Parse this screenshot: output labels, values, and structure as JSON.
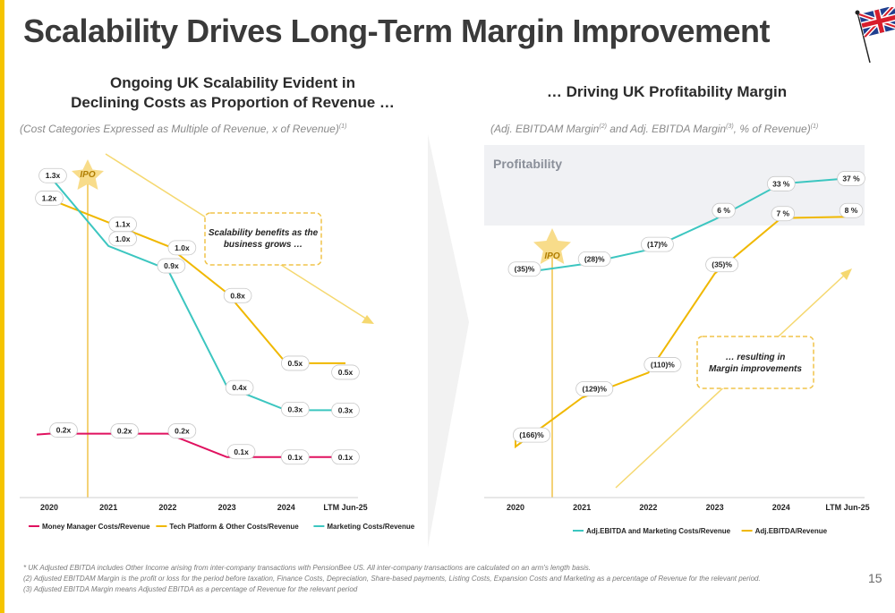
{
  "page": {
    "title": "Scalability Drives Long-Term Margin Improvement",
    "page_number": "15",
    "accent_color": "#f5c400",
    "flag_icon": "uk-flag-icon"
  },
  "left_panel": {
    "heading_line1": "Ongoing UK Scalability Evident in",
    "heading_line2": "Declining Costs as Proportion of Revenue …",
    "note": "(Cost Categories Expressed as Multiple of Revenue, x of Revenue)",
    "note_sup": "(1)",
    "callout": "Scalability benefits as the business grows …",
    "ipo_label": "IPO"
  },
  "right_panel": {
    "heading": "… Driving UK Profitability Margin",
    "note_a": "(Adj. EBITDAM Margin",
    "note_sup2": "(2)",
    "note_b": " and Adj. EBITDA Margin",
    "note_sup3": "(3)",
    "note_c": ", % of Revenue)",
    "note_sup1": "(1)",
    "band_label": "Profitability",
    "callout": "… resulting in Margin improvements",
    "ipo_label": "IPO"
  },
  "footnotes": [
    "* UK Adjusted EBITDA includes Other Income arising from inter-company transactions with PensionBee US. All inter-company transactions are calculated on an arm's length basis.",
    "(2) Adjusted EBITDAM Margin is the profit or loss for the period before taxation, Finance Costs, Depreciation, Share-based payments, Listing Costs, Expansion Costs and Marketing as a percentage of Revenue for the relevant period.",
    "(3) Adjusted EBITDA Margin means Adjusted EBITDA as a percentage of Revenue for the relevant period"
  ],
  "chart_data": [
    {
      "type": "line",
      "categories": [
        "2020",
        "2021",
        "2022",
        "2023",
        "2024",
        "LTM Jun-25"
      ],
      "ylim": [
        0,
        1.4
      ],
      "grid": false,
      "legend_position": "bottom",
      "series": [
        {
          "name": "Money Manager Costs/Revenue",
          "color": "#e0115f",
          "values": [
            0.2,
            0.2,
            0.2,
            0.1,
            0.1,
            0.1
          ],
          "labels": [
            "0.2x",
            "0.2x",
            "0.2x",
            "0.1x",
            "0.1x",
            "0.1x"
          ]
        },
        {
          "name": "Tech Platform & Other Costs/Revenue",
          "color": "#f0b800",
          "values": [
            1.2,
            1.1,
            1.0,
            0.8,
            0.5,
            0.5
          ],
          "labels": [
            "1.2x",
            "1.1x",
            "1.0x",
            "0.8x",
            "0.5x",
            "0.5x"
          ]
        },
        {
          "name": "Marketing Costs/Revenue",
          "color": "#3cc6c0",
          "values": [
            1.3,
            1.0,
            0.9,
            0.4,
            0.3,
            0.3
          ],
          "labels": [
            "1.3x",
            "1.0x",
            "0.9x",
            "0.4x",
            "0.3x",
            "0.3x"
          ]
        }
      ]
    },
    {
      "type": "line",
      "categories": [
        "2020",
        "2021",
        "2022",
        "2023",
        "2024",
        "LTM Jun-25"
      ],
      "ylim": [
        -170,
        40
      ],
      "grid": false,
      "legend_position": "bottom",
      "series": [
        {
          "name": "Adj.EBITDA and Marketing Costs/Revenue",
          "color": "#3cc6c0",
          "values": [
            -35,
            -28,
            -17,
            6,
            33,
            37
          ],
          "labels": [
            "(35)%",
            "(28)%",
            "(17)%",
            "6 %",
            "33 %",
            "37 %"
          ]
        },
        {
          "name": "Adj.EBITDA/Revenue",
          "color": "#f0b800",
          "values": [
            -166,
            -129,
            -110,
            -35,
            7,
            8
          ],
          "labels": [
            "(166)%",
            "(129)%",
            "(110)%",
            "(35)%",
            "7 %",
            "8 %"
          ]
        }
      ]
    }
  ]
}
